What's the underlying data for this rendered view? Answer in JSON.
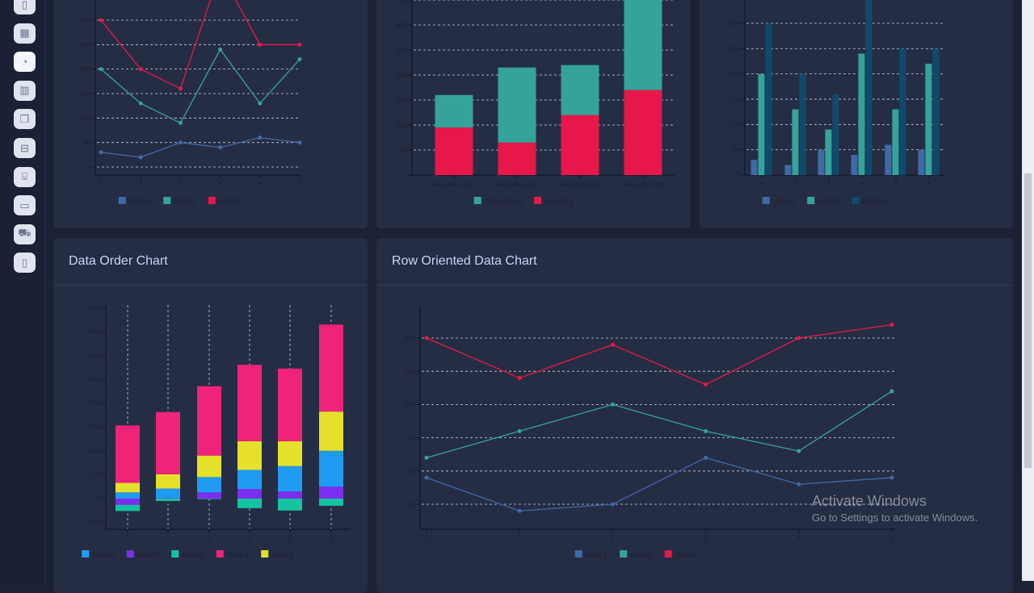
{
  "sidebar": {
    "icons": [
      "file-icon",
      "grid-icon",
      "clock-icon",
      "map-icon",
      "copy-icon",
      "briefcase-icon",
      "inbox-icon",
      "card-icon",
      "cart-icon",
      "calculator-icon"
    ],
    "active_index": 2
  },
  "cards": {
    "data_order_title": "Data Order Chart",
    "row_oriented_title": "Row Oriented Data Chart"
  },
  "watermark": {
    "line1": "Activate Windows",
    "line2": "Go to Settings to activate Windows."
  },
  "colors": {
    "data1": "#3f6aa6",
    "data2": "#35a39a",
    "data3": "#e8174a",
    "bar_data3": "#0f4a6c",
    "o1": "#209bf4",
    "o2": "#7b2ef0",
    "o3": "#14c3a0",
    "o4": "#f0237a",
    "o5": "#e5e12a"
  },
  "chart_data": [
    {
      "type": "line",
      "categories": [
        "0",
        "1",
        "2",
        "3",
        "4",
        "5"
      ],
      "yticks": [
        0,
        50,
        100,
        150,
        200,
        250,
        300
      ],
      "grid": "y-dashed",
      "legend": "bottom",
      "series": [
        {
          "name": "data1",
          "values": [
            30,
            20,
            50,
            40,
            60,
            50
          ]
        },
        {
          "name": "data2",
          "values": [
            200,
            130,
            90,
            240,
            130,
            220
          ]
        },
        {
          "name": "data3",
          "values": [
            300,
            200,
            160,
            400,
            250,
            250
          ]
        }
      ]
    },
    {
      "type": "bar",
      "stacked": true,
      "categories": [
        "www.site1.com",
        "www.site2.com",
        "www.site3.com",
        "www.site4.com"
      ],
      "yticks": [
        0,
        100,
        200,
        300,
        400,
        500,
        600,
        700
      ],
      "grid": "y-dashed",
      "legend": "bottom",
      "series": [
        {
          "name": "download",
          "values": [
            130,
            300,
            200,
            400
          ]
        },
        {
          "name": "loading",
          "values": [
            190,
            130,
            240,
            340
          ]
        }
      ]
    },
    {
      "type": "bar",
      "categories": [
        "0",
        "1",
        "2",
        "3",
        "4",
        "5"
      ],
      "yticks": [
        0,
        50,
        100,
        150,
        200,
        250,
        300
      ],
      "grid": "y-dashed",
      "legend": "bottom",
      "series": [
        {
          "name": "data1",
          "values": [
            30,
            20,
            50,
            40,
            60,
            50
          ]
        },
        {
          "name": "data2",
          "values": [
            200,
            130,
            90,
            240,
            130,
            220
          ]
        },
        {
          "name": "data3",
          "values": [
            300,
            200,
            160,
            400,
            250,
            250
          ]
        }
      ]
    },
    {
      "type": "bar",
      "stacked": true,
      "title": "Data Order Chart",
      "categories": [
        "0",
        "1",
        "2",
        "3",
        "4",
        "5"
      ],
      "yticks": [
        -500,
        0,
        500,
        1000,
        1500,
        2000,
        2500,
        3000,
        3500,
        4000
      ],
      "grid": "x-dashed",
      "legend": "bottom",
      "series": [
        {
          "name": "data1",
          "values": [
            130,
            200,
            320,
            400,
            530,
            750
          ]
        },
        {
          "name": "data2",
          "values": [
            -130,
            10,
            130,
            200,
            150,
            250
          ]
        },
        {
          "name": "data3",
          "values": [
            -130,
            -50,
            -10,
            -200,
            -250,
            -150
          ]
        },
        {
          "name": "data4",
          "values": [
            1200,
            1300,
            1450,
            1600,
            1520,
            1820
          ]
        },
        {
          "name": "data5",
          "values": [
            200,
            300,
            450,
            600,
            520,
            820
          ]
        }
      ]
    },
    {
      "type": "line",
      "title": "Row Oriented Data Chart",
      "categories": [
        "0",
        "1",
        "2",
        "3",
        "4",
        "5"
      ],
      "yticks": [
        50,
        100,
        150,
        200,
        250,
        300
      ],
      "grid": "y-dashed",
      "legend": "bottom",
      "series": [
        {
          "name": "data1",
          "values": [
            90,
            40,
            50,
            120,
            80,
            90
          ]
        },
        {
          "name": "data2",
          "values": [
            120,
            160,
            200,
            160,
            130,
            220
          ]
        },
        {
          "name": "data3",
          "values": [
            300,
            240,
            290,
            230,
            300,
            320
          ]
        }
      ]
    }
  ]
}
